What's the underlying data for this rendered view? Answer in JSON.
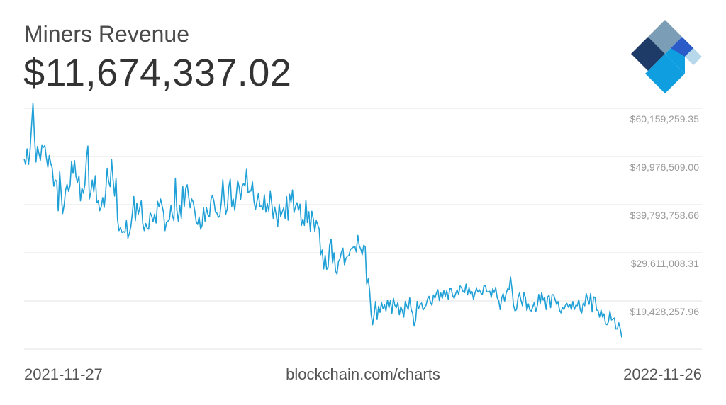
{
  "header": {
    "title": "Miners Revenue",
    "value": "$11,674,337.02"
  },
  "footer": {
    "start_date": "2021-11-27",
    "source": "blockchain.com/charts",
    "end_date": "2022-11-26"
  },
  "logo": {
    "name": "blockchain-logo-icon",
    "colors": [
      "#7b9eb6",
      "#1e3a66",
      "#2a5bc9",
      "#0f9fe0",
      "#b7d8ea"
    ]
  },
  "colors": {
    "line": "#1fa0d6",
    "grid": "#e3e3e3",
    "tick_label": "#9a9a9a"
  },
  "chart_data": {
    "type": "line",
    "x_start": "2021-11-27",
    "x_end": "2022-11-26",
    "y_ticks": [
      19428257.96,
      29611008.31,
      39793758.66,
      49976509.0,
      60159259.35
    ],
    "y_tick_labels": [
      "$19,428,257.96",
      "$29,611,008.31",
      "$39,793,758.66",
      "$49,976,509.00",
      "$60,159,259.35"
    ],
    "grid": true,
    "series": [
      {
        "values": [
          49.5,
          48.3,
          51.6,
          48.3,
          51.2,
          56.4,
          61.3,
          54.1,
          48.8,
          52.1,
          50.6,
          49.2,
          52.3,
          51.9,
          52.3,
          49.7,
          47.7,
          50.2,
          48.5,
          47.5,
          43.7,
          45.0,
          44.8,
          38.5,
          46.8,
          42.3,
          37.9,
          39.7,
          42.9,
          44.1,
          42.6,
          43.8,
          48.9,
          46.4,
          49.1,
          45.7,
          44.5,
          45.9,
          40.6,
          43.3,
          42.2,
          44.1,
          49.6,
          52.2,
          41.0,
          42.4,
          45.0,
          42.5,
          45.9,
          40.2,
          40.6,
          38.5,
          39.3,
          41.3,
          39.2,
          42.4,
          47.5,
          44.7,
          43.6,
          49.3,
          45.0,
          41.6,
          45.4,
          36.6,
          34.3,
          34.9,
          33.9,
          34.1,
          33.9,
          36.4,
          32.7,
          33.7,
          35.2,
          38.0,
          41.5,
          36.4,
          40.1,
          37.8,
          39.2,
          40.6,
          35.8,
          34.3,
          35.8,
          34.8,
          34.6,
          38.1,
          37.4,
          36.2,
          37.8,
          35.9,
          40.5,
          39.3,
          41.0,
          39.6,
          38.2,
          34.3,
          36.0,
          36.3,
          36.6,
          39.6,
          37.5,
          36.4,
          45.4,
          38.6,
          36.3,
          39.6,
          36.9,
          43.6,
          39.4,
          43.3,
          44.0,
          41.4,
          39.1,
          41.0,
          40.4,
          38.6,
          36.2,
          35.6,
          37.2,
          34.6,
          35.4,
          39.1,
          36.3,
          39.1,
          37.6,
          37.2,
          40.9,
          41.8,
          40.5,
          38.2,
          38.0,
          37.1,
          37.5,
          40.4,
          45.1,
          40.7,
          37.8,
          38.9,
          43.5,
          45.2,
          39.4,
          41.0,
          38.6,
          41.6,
          44.9,
          43.5,
          40.9,
          43.6,
          44.3,
          43.7,
          47.4,
          42.3,
          42.6,
          42.7,
          44.6,
          40.5,
          38.7,
          40.4,
          42.2,
          39.4,
          39.5,
          38.8,
          41.9,
          38.2,
          40.0,
          38.4,
          42.6,
          40.0,
          36.9,
          39.3,
          37.6,
          35.1,
          39.9,
          37.3,
          38.2,
          39.1,
          36.9,
          41.5,
          36.5,
          42.0,
          40.3,
          42.9,
          38.1,
          39.4,
          40.2,
          38.6,
          39.9,
          35.4,
          36.7,
          35.4,
          40.8,
          36.0,
          38.3,
          34.2,
          38.4,
          36.8,
          34.2,
          36.4,
          35.5,
          34.6,
          29.2,
          30.2,
          26.2,
          29.1,
          26.1,
          26.6,
          31.3,
          32.5,
          27.4,
          29.6,
          25.8,
          25.1,
          27.8,
          28.3,
          29.8,
          30.6,
          27.1,
          28.4,
          28.9,
          29.0,
          30.3,
          30.6,
          30.8,
          31.0,
          29.8,
          33.3,
          31.1,
          30.4,
          29.2,
          31.2,
          30.9,
          23.0,
          24.1,
          21.6,
          16.6,
          14.4,
          16.5,
          19.3,
          15.5,
          18.3,
          17.0,
          19.1,
          17.8,
          18.6,
          17.3,
          19.6,
          18.0,
          19.5,
          16.8,
          20.0,
          18.5,
          18.0,
          19.1,
          16.5,
          18.2,
          17.4,
          16.0,
          19.3,
          18.4,
          17.6,
          20.1,
          17.6,
          16.8,
          14.1,
          15.3,
          19.3,
          17.8,
          18.6,
          19.0,
          17.5,
          18.0,
          18.5,
          19.8,
          20.4,
          19.2,
          18.5,
          20.7,
          20.0,
          21.1,
          21.8,
          19.5,
          21.1,
          20.0,
          21.6,
          20.4,
          21.6,
          19.8,
          22.0,
          22.0,
          20.5,
          20.0,
          21.0,
          21.8,
          20.8,
          22.6,
          22.2,
          21.4,
          21.2,
          23.0,
          20.7,
          22.2,
          21.0,
          21.4,
          19.8,
          21.1,
          22.1,
          21.3,
          21.8,
          21.1,
          20.8,
          22.6,
          22.6,
          21.4,
          21.3,
          21.5,
          20.2,
          22.0,
          21.2,
          22.2,
          20.1,
          19.5,
          17.6,
          20.0,
          21.0,
          19.4,
          21.0,
          22.0,
          21.8,
          24.5,
          21.9,
          18.5,
          17.3,
          17.6,
          20.0,
          21.1,
          19.6,
          18.4,
          21.2,
          20.2,
          17.4,
          18.8,
          17.5,
          17.3,
          18.2,
          19.1,
          17.2,
          18.3,
          20.8,
          18.9,
          21.2,
          19.6,
          20.1,
          17.6,
          20.3,
          20.6,
          18.0,
          20.8,
          20.7,
          19.8,
          18.7,
          19.3,
          17.5,
          16.9,
          18.1,
          17.6,
          18.5,
          18.9,
          18.1,
          18.7,
          17.6,
          19.3,
          17.6,
          18.5,
          18.4,
          19.7,
          17.5,
          16.9,
          19.0,
          18.4,
          21.0,
          19.8,
          18.7,
          21.0,
          17.1,
          20.3,
          20.1,
          17.5,
          17.4,
          16.0,
          17.5,
          16.0,
          16.7,
          14.6,
          14.4,
          15.0,
          17.3,
          15.4,
          15.6,
          15.8,
          13.5,
          13.5,
          14.8,
          13.5,
          11.7
        ]
      }
    ],
    "value_scale": 1000000,
    "ylim": [
      10000000,
      63000000
    ]
  }
}
